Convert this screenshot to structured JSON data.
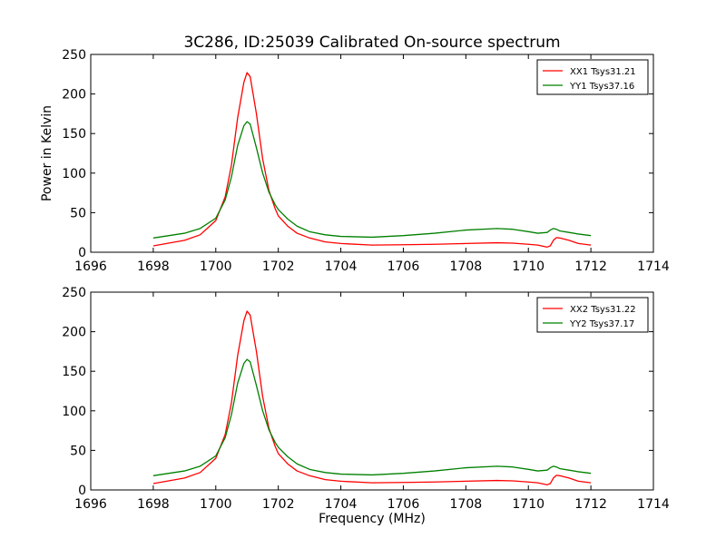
{
  "figure": {
    "title": "3C286, ID:25039 Calibrated On-source spectrum",
    "xlabel": "Frequency (MHz)",
    "ylabel": "Power in Kelvin"
  },
  "chart_data": [
    {
      "type": "line",
      "title": "3C286, ID:25039 Calibrated On-source spectrum",
      "xlabel": "",
      "ylabel": "Power in Kelvin",
      "xlim": [
        1696,
        1714
      ],
      "ylim": [
        0,
        250
      ],
      "x_ticks": [
        1696,
        1698,
        1700,
        1702,
        1704,
        1706,
        1708,
        1710,
        1712,
        1714
      ],
      "y_ticks": [
        0,
        50,
        100,
        150,
        200,
        250
      ],
      "grid": false,
      "legend_position": "top-right",
      "series": [
        {
          "name": "XX1 Tsys31.21",
          "color": "#ff0000",
          "x": [
            1698,
            1699,
            1699.5,
            1700,
            1700.3,
            1700.5,
            1700.7,
            1700.9,
            1701,
            1701.1,
            1701.3,
            1701.5,
            1701.7,
            1701.9,
            1702,
            1702.3,
            1702.6,
            1703,
            1703.5,
            1704,
            1705,
            1706,
            1707,
            1708,
            1709,
            1709.5,
            1710,
            1710.3,
            1710.6,
            1710.7,
            1710.8,
            1710.9,
            1711,
            1711.3,
            1711.6,
            1712
          ],
          "y": [
            8,
            15,
            22,
            40,
            70,
            110,
            170,
            215,
            227,
            222,
            175,
            118,
            78,
            55,
            46,
            33,
            24,
            18,
            13,
            11,
            9,
            9.5,
            10,
            11,
            12,
            11.5,
            10,
            9,
            6.5,
            8,
            15,
            18.5,
            18,
            15,
            11,
            9
          ]
        },
        {
          "name": "YY1 Tsys37.16",
          "color": "#008000",
          "x": [
            1698,
            1699,
            1699.5,
            1700,
            1700.3,
            1700.5,
            1700.7,
            1700.9,
            1701,
            1701.1,
            1701.3,
            1701.5,
            1701.7,
            1701.9,
            1702,
            1702.3,
            1702.6,
            1703,
            1703.5,
            1704,
            1705,
            1706,
            1707,
            1708,
            1709,
            1709.5,
            1710,
            1710.3,
            1710.6,
            1710.7,
            1710.8,
            1710.9,
            1711,
            1711.3,
            1711.6,
            1712
          ],
          "y": [
            18,
            24,
            30,
            43,
            66,
            95,
            135,
            160,
            165,
            162,
            132,
            100,
            76,
            60,
            54,
            42,
            33,
            26,
            22,
            20,
            19,
            21,
            24,
            28,
            30,
            29,
            26,
            24,
            25,
            28,
            30,
            29,
            27,
            25,
            23,
            21
          ]
        }
      ]
    },
    {
      "type": "line",
      "title": "",
      "xlabel": "Frequency (MHz)",
      "ylabel": "",
      "xlim": [
        1696,
        1714
      ],
      "ylim": [
        0,
        250
      ],
      "x_ticks": [
        1696,
        1698,
        1700,
        1702,
        1704,
        1706,
        1708,
        1710,
        1712,
        1714
      ],
      "y_ticks": [
        0,
        50,
        100,
        150,
        200,
        250
      ],
      "grid": false,
      "legend_position": "top-right",
      "series": [
        {
          "name": "XX2 Tsys31.22",
          "color": "#ff0000",
          "x": [
            1698,
            1699,
            1699.5,
            1700,
            1700.3,
            1700.5,
            1700.7,
            1700.9,
            1701,
            1701.1,
            1701.3,
            1701.5,
            1701.7,
            1701.9,
            1702,
            1702.3,
            1702.6,
            1703,
            1703.5,
            1704,
            1705,
            1706,
            1707,
            1708,
            1709,
            1709.5,
            1710,
            1710.3,
            1710.6,
            1710.7,
            1710.8,
            1710.9,
            1711,
            1711.3,
            1711.6,
            1712
          ],
          "y": [
            8,
            15,
            22,
            40,
            70,
            110,
            170,
            214,
            226,
            221,
            175,
            118,
            78,
            55,
            46,
            33,
            24,
            18,
            13,
            11,
            9,
            9.5,
            10,
            11,
            12,
            11.5,
            10,
            9,
            6.5,
            8,
            15,
            18.5,
            18,
            15,
            11,
            9
          ]
        },
        {
          "name": "YY2 Tsys37.17",
          "color": "#008000",
          "x": [
            1698,
            1699,
            1699.5,
            1700,
            1700.3,
            1700.5,
            1700.7,
            1700.9,
            1701,
            1701.1,
            1701.3,
            1701.5,
            1701.7,
            1701.9,
            1702,
            1702.3,
            1702.6,
            1703,
            1703.5,
            1704,
            1705,
            1706,
            1707,
            1708,
            1709,
            1709.5,
            1710,
            1710.3,
            1710.6,
            1710.7,
            1710.8,
            1710.9,
            1711,
            1711.3,
            1711.6,
            1712
          ],
          "y": [
            18,
            24,
            30,
            43,
            66,
            95,
            135,
            160,
            165,
            162,
            132,
            100,
            76,
            60,
            54,
            42,
            33,
            26,
            22,
            20,
            19,
            21,
            24,
            28,
            30,
            29,
            26,
            24,
            25,
            28,
            30,
            29,
            27,
            25,
            23,
            21
          ]
        }
      ]
    }
  ]
}
